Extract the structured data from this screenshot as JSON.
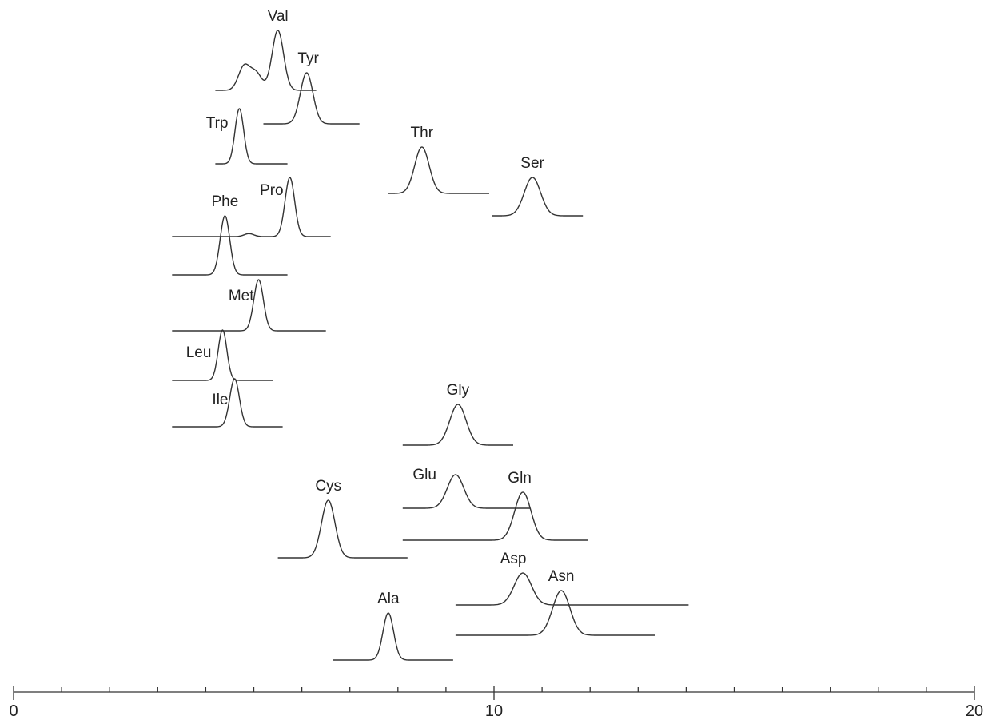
{
  "chart_data": {
    "type": "line",
    "title": "",
    "xlabel": "",
    "ylabel": "",
    "xlim": [
      0,
      20
    ],
    "x_ticks": [
      0,
      10,
      20
    ],
    "minor_tick_step": 1,
    "grid": false,
    "series": [
      {
        "name": "Val",
        "peak_x": 5.5,
        "peaks": [
          {
            "x": 4.8,
            "h": 0.4
          },
          {
            "x": 5.05,
            "h": 0.28
          },
          {
            "x": 5.5,
            "h": 1.0
          }
        ],
        "width": 0.12,
        "x_start": 4.2,
        "x_end": 6.3
      },
      {
        "name": "Tyr",
        "peak_x": 6.1,
        "peaks": [
          {
            "x": 6.1,
            "h": 1.0
          }
        ],
        "width": 0.13,
        "x_start": 5.2,
        "x_end": 7.2
      },
      {
        "name": "Trp",
        "peak_x": 4.7,
        "peaks": [
          {
            "x": 4.7,
            "h": 1.0
          }
        ],
        "width": 0.09,
        "x_start": 4.2,
        "x_end": 5.7
      },
      {
        "name": "Thr",
        "peak_x": 8.5,
        "peaks": [
          {
            "x": 8.5,
            "h": 1.0
          }
        ],
        "width": 0.15,
        "x_start": 7.8,
        "x_end": 9.9
      },
      {
        "name": "Ser",
        "peak_x": 10.8,
        "peaks": [
          {
            "x": 10.8,
            "h": 1.0
          }
        ],
        "width": 0.17,
        "x_start": 9.95,
        "x_end": 11.85
      },
      {
        "name": "Pro",
        "peak_x": 5.75,
        "peaks": [
          {
            "x": 4.9,
            "h": 0.05
          },
          {
            "x": 5.75,
            "h": 1.0
          }
        ],
        "width": 0.1,
        "x_start": 3.3,
        "x_end": 6.6
      },
      {
        "name": "Phe",
        "peak_x": 4.4,
        "peaks": [
          {
            "x": 4.4,
            "h": 1.0
          }
        ],
        "width": 0.1,
        "x_start": 3.3,
        "x_end": 5.7
      },
      {
        "name": "Met",
        "peak_x": 5.1,
        "peaks": [
          {
            "x": 5.1,
            "h": 1.0
          }
        ],
        "width": 0.1,
        "x_start": 3.3,
        "x_end": 6.5
      },
      {
        "name": "Leu",
        "peak_x": 4.35,
        "peaks": [
          {
            "x": 4.35,
            "h": 1.0
          }
        ],
        "width": 0.09,
        "x_start": 3.3,
        "x_end": 5.4
      },
      {
        "name": "Ile",
        "peak_x": 4.6,
        "peaks": [
          {
            "x": 4.6,
            "h": 1.0
          }
        ],
        "width": 0.1,
        "x_start": 3.3,
        "x_end": 5.6
      },
      {
        "name": "Gly",
        "peak_x": 9.25,
        "peaks": [
          {
            "x": 9.25,
            "h": 1.0
          }
        ],
        "width": 0.17,
        "x_start": 8.1,
        "x_end": 10.4
      },
      {
        "name": "Cys",
        "peak_x": 6.55,
        "peaks": [
          {
            "x": 6.55,
            "h": 1.0
          }
        ],
        "width": 0.14,
        "x_start": 5.5,
        "x_end": 8.2
      },
      {
        "name": "Glu",
        "peak_x": 9.2,
        "peaks": [
          {
            "x": 9.2,
            "h": 1.0
          }
        ],
        "width": 0.17,
        "x_start": 8.1,
        "x_end": 10.75
      },
      {
        "name": "Gln",
        "peak_x": 10.6,
        "peaks": [
          {
            "x": 10.6,
            "h": 1.0
          }
        ],
        "width": 0.17,
        "x_start": 8.1,
        "x_end": 11.95
      },
      {
        "name": "Asp",
        "peak_x": 10.6,
        "peaks": [
          {
            "x": 10.6,
            "h": 1.0
          }
        ],
        "width": 0.18,
        "x_start": 9.2,
        "x_end": 14.05
      },
      {
        "name": "Asn",
        "peak_x": 11.4,
        "peaks": [
          {
            "x": 11.4,
            "h": 1.0
          }
        ],
        "width": 0.18,
        "x_start": 9.2,
        "x_end": 13.35
      },
      {
        "name": "Ala",
        "peak_x": 7.8,
        "peaks": [
          {
            "x": 7.8,
            "h": 1.0
          }
        ],
        "width": 0.11,
        "x_start": 6.65,
        "x_end": 9.15
      }
    ]
  }
}
